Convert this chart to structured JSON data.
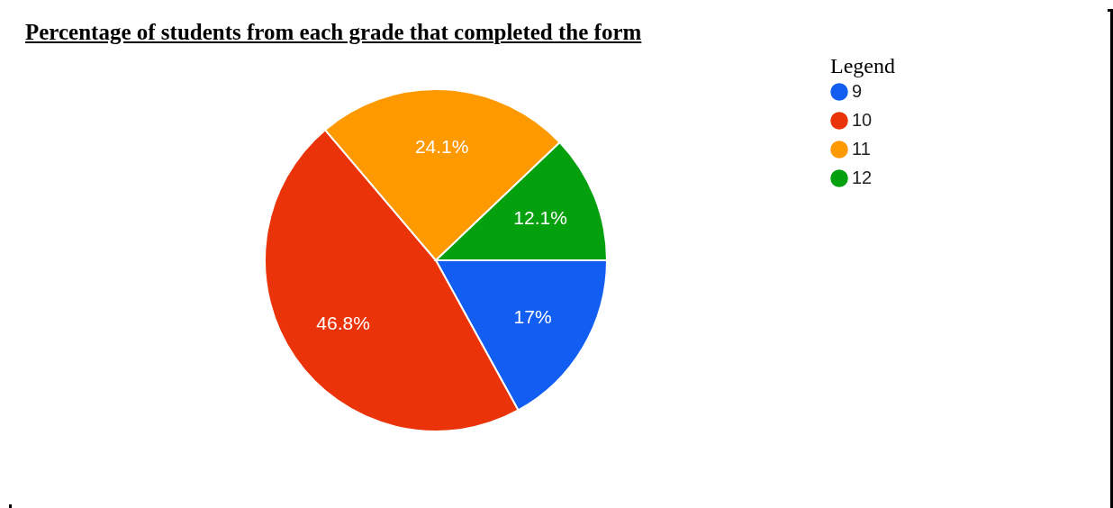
{
  "chart_data": {
    "type": "pie",
    "title": "Percentage of students from each grade that completed the form",
    "legend_title": "Legend",
    "legend": "top right",
    "categories": [
      "9",
      "10",
      "11",
      "12"
    ],
    "values": [
      17,
      46.8,
      24.1,
      12.1
    ],
    "value_labels": [
      "17%",
      "46.8%",
      "24.1%",
      "12.1%"
    ],
    "colors": [
      "#135ef2",
      "#ea3308",
      "#ff9900",
      "#05a00e"
    ]
  }
}
